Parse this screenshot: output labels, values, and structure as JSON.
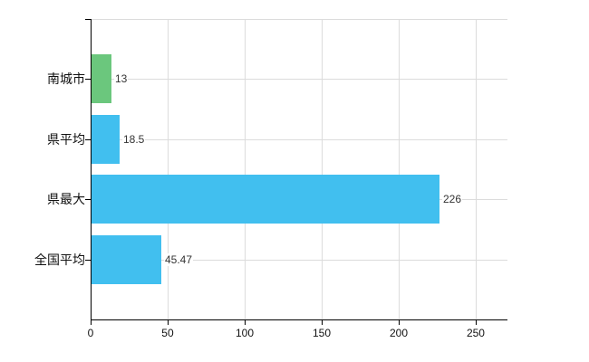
{
  "chart_data": {
    "type": "bar",
    "orientation": "horizontal",
    "title": "",
    "xlabel": "",
    "ylabel": "",
    "categories": [
      "南城市",
      "県平均",
      "県最大",
      "全国平均"
    ],
    "values": [
      13,
      18.5,
      226,
      45.47
    ],
    "value_labels": [
      "13",
      "18.5",
      "226",
      "45.47"
    ],
    "series": [
      {
        "name": "value",
        "values": [
          13,
          18.5,
          226,
          45.47
        ]
      }
    ],
    "bar_colors": [
      "#6bc77d",
      "#41bfef",
      "#41bfef",
      "#41bfef"
    ],
    "x_ticks": [
      0,
      50,
      100,
      150,
      200,
      250
    ],
    "x_tick_labels": [
      "0",
      "50",
      "100",
      "150",
      "200",
      "250"
    ],
    "xlim": [
      0,
      270.6
    ],
    "grid": "on",
    "legend": "none",
    "background": "#ffffff"
  },
  "colors": {
    "axis": "#000000",
    "gridline": "#dcdcdc",
    "green_bar": "#6bc77d",
    "blue_bar": "#41bfef",
    "text": "#111111",
    "value_text": "#333333"
  }
}
